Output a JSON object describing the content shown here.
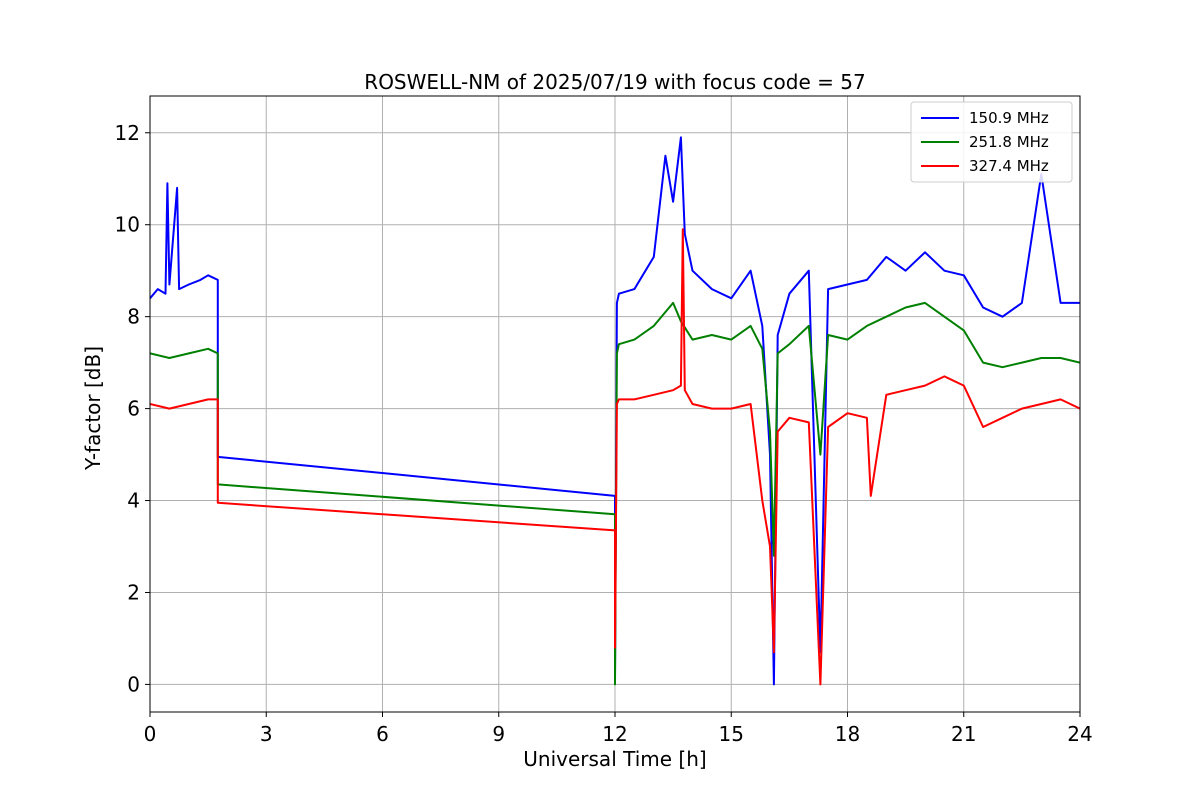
{
  "chart_data": {
    "type": "line",
    "title": "ROSWELL-NM of 2025/07/19 with focus code = 57",
    "xlabel": "Universal Time [h]",
    "ylabel": "Y-factor [dB]",
    "xlim": [
      0,
      24
    ],
    "ylim": [
      -0.6,
      12.8
    ],
    "xticks": [
      0,
      3,
      6,
      9,
      12,
      15,
      18,
      21,
      24
    ],
    "yticks": [
      0,
      2,
      4,
      6,
      8,
      10,
      12
    ],
    "grid": true,
    "legend_position": "top-right",
    "series": [
      {
        "name": "150.9 MHz",
        "color": "#0000ff",
        "x": [
          0,
          0.2,
          0.4,
          0.45,
          0.5,
          0.7,
          0.75,
          1.0,
          1.3,
          1.5,
          1.75,
          1.75,
          12.0,
          12.0,
          12.05,
          12.1,
          12.5,
          13.0,
          13.3,
          13.5,
          13.7,
          13.8,
          14.0,
          14.5,
          15.0,
          15.5,
          15.8,
          16.0,
          16.1,
          16.2,
          16.5,
          17.0,
          17.3,
          17.5,
          18.0,
          18.5,
          19.0,
          19.5,
          20.0,
          20.5,
          21.0,
          21.5,
          22.0,
          22.5,
          23.0,
          23.5,
          24.0
        ],
        "values": [
          8.4,
          8.6,
          8.5,
          10.9,
          8.7,
          10.8,
          8.6,
          8.7,
          8.8,
          8.9,
          8.8,
          4.95,
          4.1,
          0.2,
          8.3,
          8.5,
          8.6,
          9.3,
          11.5,
          10.5,
          11.9,
          9.8,
          9.0,
          8.6,
          8.4,
          9.0,
          7.8,
          5.0,
          0.0,
          7.6,
          8.5,
          9.0,
          0.7,
          8.6,
          8.7,
          8.8,
          9.3,
          9.0,
          9.4,
          9.0,
          8.9,
          8.2,
          8.0,
          8.3,
          11.1,
          8.3,
          8.3
        ]
      },
      {
        "name": "251.8 MHz",
        "color": "#008000",
        "x": [
          0,
          0.5,
          1.0,
          1.5,
          1.75,
          1.75,
          12.0,
          12.0,
          12.05,
          12.1,
          12.5,
          13.0,
          13.5,
          13.7,
          14.0,
          14.5,
          15.0,
          15.5,
          15.8,
          16.0,
          16.1,
          16.2,
          16.5,
          17.0,
          17.3,
          17.5,
          18.0,
          18.5,
          19.0,
          19.5,
          20.0,
          20.5,
          21.0,
          21.5,
          22.0,
          22.5,
          23.0,
          23.5,
          24.0
        ],
        "values": [
          7.2,
          7.1,
          7.2,
          7.3,
          7.2,
          4.35,
          3.7,
          0.0,
          7.2,
          7.4,
          7.5,
          7.8,
          8.3,
          7.9,
          7.5,
          7.6,
          7.5,
          7.8,
          7.3,
          5.5,
          2.8,
          7.2,
          7.4,
          7.8,
          5.0,
          7.6,
          7.5,
          7.8,
          8.0,
          8.2,
          8.3,
          8.0,
          7.7,
          7.0,
          6.9,
          7.0,
          7.1,
          7.1,
          7.0
        ]
      },
      {
        "name": "327.4 MHz",
        "color": "#ff0000",
        "x": [
          0,
          0.5,
          1.0,
          1.5,
          1.75,
          1.75,
          12.0,
          12.0,
          12.05,
          12.1,
          12.5,
          13.0,
          13.5,
          13.7,
          13.75,
          13.8,
          14.0,
          14.5,
          15.0,
          15.5,
          15.8,
          16.0,
          16.1,
          16.2,
          16.5,
          17.0,
          17.3,
          17.5,
          18.0,
          18.5,
          18.6,
          19.0,
          19.5,
          20.0,
          20.5,
          21.0,
          21.5,
          22.0,
          22.5,
          23.0,
          23.5,
          24.0
        ],
        "values": [
          6.1,
          6.0,
          6.1,
          6.2,
          6.2,
          3.95,
          3.35,
          0.8,
          6.1,
          6.2,
          6.2,
          6.3,
          6.4,
          6.5,
          9.9,
          6.4,
          6.1,
          6.0,
          6.0,
          6.1,
          4.0,
          3.0,
          0.7,
          5.5,
          5.8,
          5.7,
          0.0,
          5.6,
          5.9,
          5.8,
          4.1,
          6.3,
          6.4,
          6.5,
          6.7,
          6.5,
          5.6,
          5.8,
          6.0,
          6.1,
          6.2,
          6.0
        ]
      }
    ]
  }
}
